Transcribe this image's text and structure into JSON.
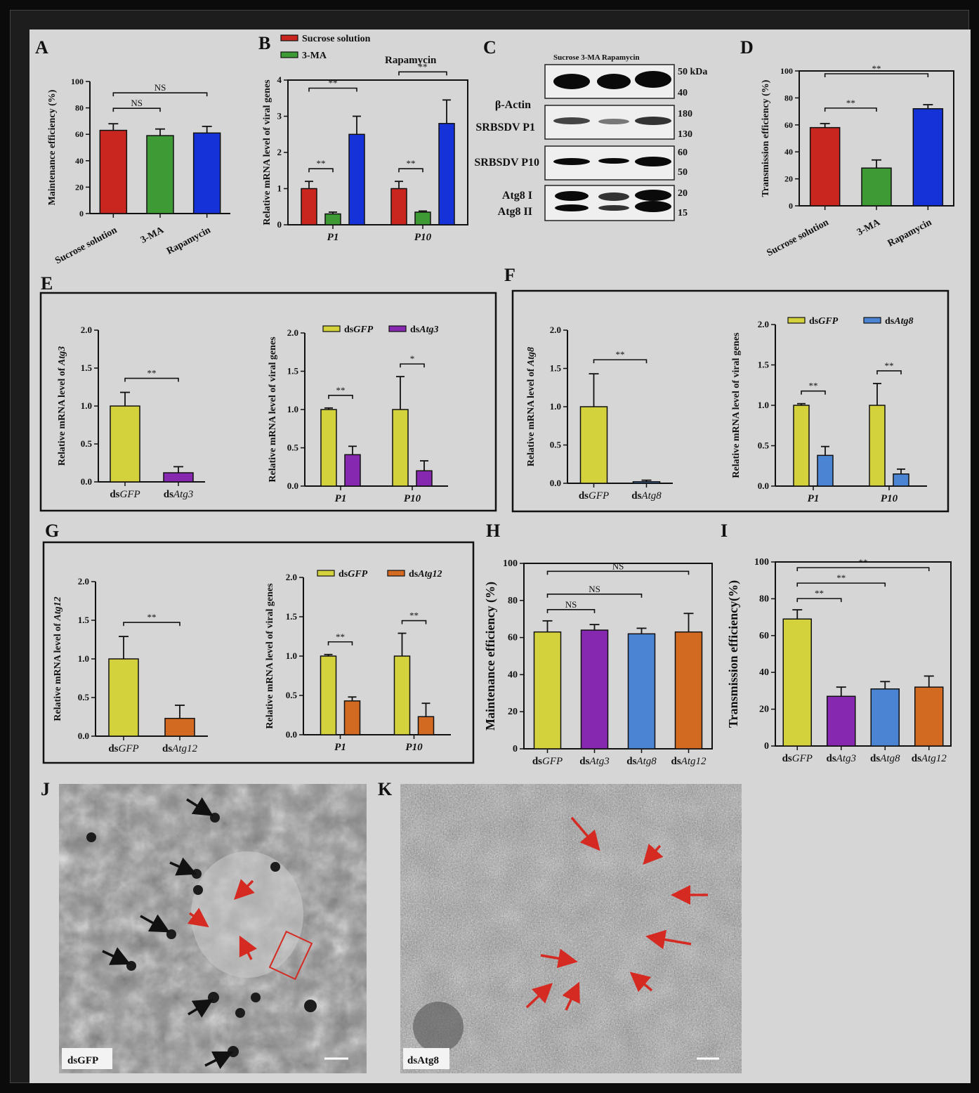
{
  "panels": {
    "A": "A",
    "B": "B",
    "C": "C",
    "D": "D",
    "E": "E",
    "F": "F",
    "G": "G",
    "H": "H",
    "I": "I",
    "J": "J",
    "K": "K"
  },
  "colors": {
    "sucrose": "#c8261f",
    "ma3": "#3d9a34",
    "rapamycin": "#1531d8",
    "dsgfp": "#d4d23c",
    "dsatg3": "#8629b0",
    "dsatg8": "#4a84d2",
    "dsatg12": "#d26a22"
  },
  "blot": {
    "header": "Sucrose 3-MA  Rapamycin",
    "row_labels": [
      "β-Actin",
      "SRBSDV P1",
      "SRBSDV P10",
      "Atg8 I",
      "Atg8 II"
    ],
    "marker_labels": [
      "50 kDa",
      "40",
      "180",
      "130",
      "60",
      "50",
      "20",
      "15"
    ]
  },
  "micrographs": {
    "J_label": "dsGFP",
    "K_label": "dsAtg8"
  },
  "chart_data": [
    {
      "id": "A",
      "type": "bar",
      "categories": [
        "Sucrose solution",
        "3-MA",
        "Rapamycin"
      ],
      "values": [
        63,
        59,
        61
      ],
      "errors": [
        5,
        5,
        5
      ],
      "colors": [
        "sucrose",
        "ma3",
        "rapamycin"
      ],
      "ylabel": "Maintenance efficiency (%)",
      "ylim": [
        0,
        100
      ],
      "yticks": [
        "0",
        "20",
        "40",
        "60",
        "80",
        "100"
      ],
      "significance": [
        {
          "from": 0,
          "to": 1,
          "label": "NS"
        },
        {
          "from": 0,
          "to": 2,
          "label": "NS"
        }
      ]
    },
    {
      "id": "B",
      "type": "bar",
      "categories": [
        "P1",
        "P10"
      ],
      "series": [
        {
          "name": "Sucrose solution",
          "values": [
            1.0,
            1.0
          ],
          "errors": [
            0.2,
            0.2
          ],
          "color": "sucrose"
        },
        {
          "name": "3-MA",
          "values": [
            0.3,
            0.35
          ],
          "errors": [
            0.05,
            0.03
          ],
          "color": "ma3"
        },
        {
          "name": "Rapamycin",
          "values": [
            2.5,
            2.8
          ],
          "errors": [
            0.5,
            0.65
          ],
          "color": "rapamycin"
        }
      ],
      "ylabel": "Relative mRNA level of viral genes",
      "ylim": [
        0,
        4
      ],
      "yticks": [
        "0",
        "1",
        "2",
        "3",
        "4"
      ],
      "significance": [
        {
          "group": 0,
          "from": 0,
          "to": 1,
          "label": "**"
        },
        {
          "group": 0,
          "from": 0,
          "to": 2,
          "label": "**"
        },
        {
          "group": 1,
          "from": 0,
          "to": 1,
          "label": "**"
        },
        {
          "group": 1,
          "from": 0,
          "to": 2,
          "label": "**"
        }
      ]
    },
    {
      "id": "D",
      "type": "bar",
      "categories": [
        "Sucrose solution",
        "3-MA",
        "Rapamycin"
      ],
      "values": [
        58,
        28,
        72
      ],
      "errors": [
        3,
        6,
        3
      ],
      "colors": [
        "sucrose",
        "ma3",
        "rapamycin"
      ],
      "ylabel": "Transmission efficiency (%)",
      "ylim": [
        0,
        100
      ],
      "yticks": [
        "0",
        "20",
        "40",
        "60",
        "80",
        "100"
      ],
      "significance": [
        {
          "from": 0,
          "to": 1,
          "label": "**"
        },
        {
          "from": 0,
          "to": 2,
          "label": "**"
        }
      ]
    },
    {
      "id": "E1",
      "type": "bar",
      "categories": [
        "dsGFP",
        "dsAtg3"
      ],
      "values": [
        1.0,
        0.12
      ],
      "errors": [
        0.18,
        0.08
      ],
      "colors": [
        "dsgfp",
        "dsatg3"
      ],
      "ylabel": "Relative mRNA level of Atg3",
      "ylim": [
        0,
        2
      ],
      "yticks": [
        "0.0",
        "0.5",
        "1.0",
        "1.5",
        "2.0"
      ],
      "significance": [
        {
          "from": 0,
          "to": 1,
          "label": "**"
        }
      ]
    },
    {
      "id": "E2",
      "type": "bar",
      "categories": [
        "P1",
        "P10"
      ],
      "series": [
        {
          "name": "dsGFP",
          "values": [
            1.0,
            1.0
          ],
          "errors": [
            0.02,
            0.43
          ],
          "color": "dsgfp"
        },
        {
          "name": "dsAtg3",
          "values": [
            0.41,
            0.2
          ],
          "errors": [
            0.11,
            0.13
          ],
          "color": "dsatg3"
        }
      ],
      "ylabel": "Relative mRNA level of viral genes",
      "ylim": [
        0,
        2
      ],
      "yticks": [
        "0.0",
        "0.5",
        "1.0",
        "1.5",
        "2.0"
      ],
      "significance": [
        {
          "group": 0,
          "from": 0,
          "to": 1,
          "label": "**"
        },
        {
          "group": 1,
          "from": 0,
          "to": 1,
          "label": "*"
        }
      ]
    },
    {
      "id": "F1",
      "type": "bar",
      "categories": [
        "dsGFP",
        "dsAtg8"
      ],
      "values": [
        1.0,
        0.02
      ],
      "errors": [
        0.43,
        0.02
      ],
      "colors": [
        "dsgfp",
        "dsatg8"
      ],
      "ylabel": "Relative mRNA level of Atg8",
      "ylim": [
        0,
        2
      ],
      "yticks": [
        "0.0",
        "0.5",
        "1.0",
        "1.5",
        "2.0"
      ],
      "significance": [
        {
          "from": 0,
          "to": 1,
          "label": "**"
        }
      ]
    },
    {
      "id": "F2",
      "type": "bar",
      "categories": [
        "P1",
        "P10"
      ],
      "series": [
        {
          "name": "dsGFP",
          "values": [
            1.0,
            1.0
          ],
          "errors": [
            0.02,
            0.27
          ],
          "color": "dsgfp"
        },
        {
          "name": "dsAtg8",
          "values": [
            0.38,
            0.15
          ],
          "errors": [
            0.11,
            0.06
          ],
          "color": "dsatg8"
        }
      ],
      "ylabel": "Relative mRNA level of viral genes",
      "ylim": [
        0,
        2
      ],
      "yticks": [
        "0.0",
        "0.5",
        "1.0",
        "1.5",
        "2.0"
      ],
      "significance": [
        {
          "group": 0,
          "from": 0,
          "to": 1,
          "label": "**"
        },
        {
          "group": 1,
          "from": 0,
          "to": 1,
          "label": "**"
        }
      ]
    },
    {
      "id": "G1",
      "type": "bar",
      "categories": [
        "dsGFP",
        "dsAtg12"
      ],
      "values": [
        1.0,
        0.23
      ],
      "errors": [
        0.29,
        0.17
      ],
      "colors": [
        "dsgfp",
        "dsatg12"
      ],
      "ylabel": "Relative mRNA level of Atg12",
      "ylim": [
        0,
        2
      ],
      "yticks": [
        "0.0",
        "0.5",
        "1.0",
        "1.5",
        "2.0"
      ],
      "significance": [
        {
          "from": 0,
          "to": 1,
          "label": "**"
        }
      ]
    },
    {
      "id": "G2",
      "type": "bar",
      "categories": [
        "P1",
        "P10"
      ],
      "series": [
        {
          "name": "dsGFP",
          "values": [
            1.0,
            1.0
          ],
          "errors": [
            0.02,
            0.29
          ],
          "color": "dsgfp"
        },
        {
          "name": "dsAtg12",
          "values": [
            0.43,
            0.23
          ],
          "errors": [
            0.05,
            0.17
          ],
          "color": "dsatg12"
        }
      ],
      "ylabel": "Relative mRNA level of viral genes",
      "ylim": [
        0,
        2
      ],
      "yticks": [
        "0.0",
        "0.5",
        "1.0",
        "1.5",
        "2.0"
      ],
      "significance": [
        {
          "group": 0,
          "from": 0,
          "to": 1,
          "label": "**"
        },
        {
          "group": 1,
          "from": 0,
          "to": 1,
          "label": "**"
        }
      ]
    },
    {
      "id": "H",
      "type": "bar",
      "categories": [
        "dsGFP",
        "dsAtg3",
        "dsAtg8",
        "dsAtg12"
      ],
      "values": [
        63,
        64,
        62,
        63
      ],
      "errors": [
        6,
        3,
        3,
        10
      ],
      "colors": [
        "dsgfp",
        "dsatg3",
        "dsatg8",
        "dsatg12"
      ],
      "ylabel": "Maintenance efficiency (%)",
      "ylim": [
        0,
        100
      ],
      "yticks": [
        "0",
        "20",
        "40",
        "60",
        "80",
        "100"
      ],
      "significance": [
        {
          "from": 0,
          "to": 1,
          "label": "NS"
        },
        {
          "from": 0,
          "to": 2,
          "label": "NS"
        },
        {
          "from": 0,
          "to": 3,
          "label": "NS"
        }
      ]
    },
    {
      "id": "I",
      "type": "bar",
      "categories": [
        "dsGFP",
        "dsAtg3",
        "dsAtg8",
        "dsAtg12"
      ],
      "values": [
        69,
        27,
        31,
        32
      ],
      "errors": [
        5,
        5,
        4,
        6
      ],
      "colors": [
        "dsgfp",
        "dsatg3",
        "dsatg8",
        "dsatg12"
      ],
      "ylabel": "Transmission efficiency(%)",
      "ylim": [
        0,
        100
      ],
      "yticks": [
        "0",
        "20",
        "40",
        "60",
        "80",
        "100"
      ],
      "significance": [
        {
          "from": 0,
          "to": 1,
          "label": "**"
        },
        {
          "from": 0,
          "to": 2,
          "label": "**"
        },
        {
          "from": 0,
          "to": 3,
          "label": "**"
        }
      ]
    }
  ]
}
